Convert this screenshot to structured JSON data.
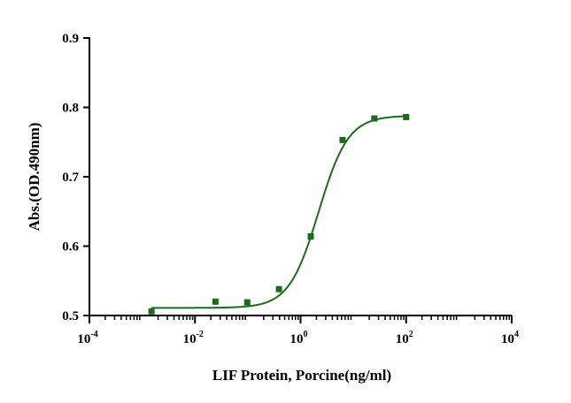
{
  "chart_data": {
    "type": "scatter",
    "title": "",
    "xlabel": "LIF Protein, Porcine(ng/ml)",
    "ylabel": "Abs.(OD.490nm)",
    "x_scale": "log",
    "xlim": [
      0.0001,
      10000
    ],
    "ylim": [
      0.5,
      0.9
    ],
    "x_ticks": [
      {
        "base": "10",
        "exp": "-4"
      },
      {
        "base": "10",
        "exp": "-2"
      },
      {
        "base": "10",
        "exp": "0"
      },
      {
        "base": "10",
        "exp": "2"
      },
      {
        "base": "10",
        "exp": "4"
      }
    ],
    "y_ticks": [
      "0.5",
      "0.6",
      "0.7",
      "0.8",
      "0.9"
    ],
    "grid": false,
    "legend": "none",
    "series": [
      {
        "x": [
          0.0015,
          0.0244,
          0.0977,
          0.39,
          1.56,
          6.25,
          25,
          100
        ],
        "y": [
          0.506,
          0.52,
          0.519,
          0.538,
          0.614,
          0.753,
          0.784,
          0.786
        ],
        "color": "#1e6b1e",
        "marker": "square"
      }
    ],
    "fit": {
      "model": "4PL",
      "bottom": 0.511,
      "top": 0.788,
      "ec50": 2.2,
      "hill": 1.55,
      "color": "#1e6b1e"
    }
  }
}
